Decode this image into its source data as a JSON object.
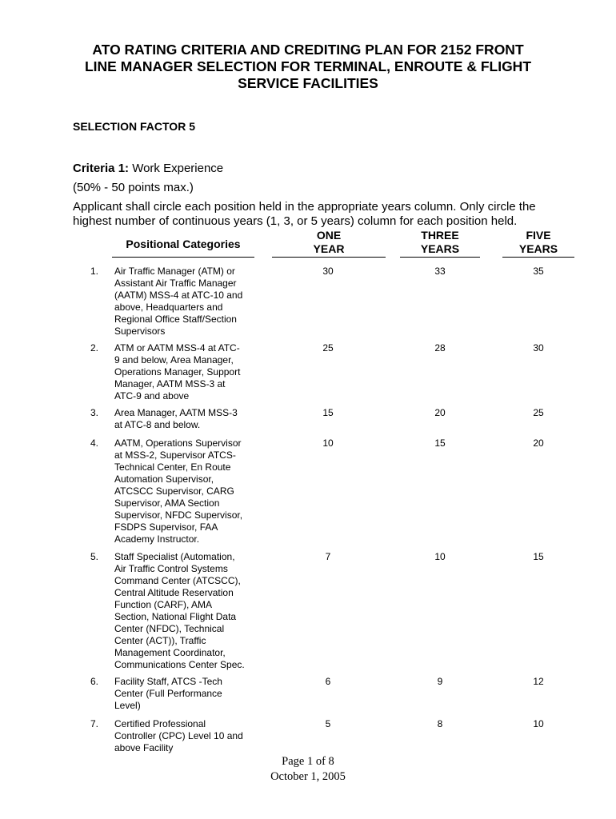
{
  "title": "ATO RATING CRITERIA AND CREDITING PLAN FOR 2152 FRONT\nLINE MANAGER SELECTION FOR TERMINAL, ENROUTE & FLIGHT\nSERVICE FACILITIES",
  "selection_factor": "SELECTION FACTOR 5",
  "criteria": {
    "label": "Criteria 1:",
    "name": "Work Experience",
    "points": "(50% - 50 points max.)"
  },
  "instructions": "Applicant shall circle each position held in the appropriate years column. Only circle the highest number of continuous years (1, 3, or 5 years) column for each position held.",
  "table": {
    "headers": {
      "category": "Positional Categories",
      "one": "ONE\nYEAR",
      "three": "THREE\nYEARS",
      "five": "FIVE\nYEARS"
    },
    "rows": [
      {
        "num": "1.",
        "desc": "Air Traffic Manager (ATM) or\nAssistant Air Traffic Manager\n(AATM) MSS-4 at ATC-10 and\nabove, Headquarters and\nRegional Office Staff/Section\nSupervisors",
        "one": "30",
        "three": "33",
        "five": "35"
      },
      {
        "num": "2.",
        "desc": "ATM or AATM MSS-4 at ATC-\n9 and below, Area Manager,\nOperations Manager, Support\nManager, AATM MSS-3 at\nATC-9 and above",
        "one": "25",
        "three": "28",
        "five": "30"
      },
      {
        "num": "3.",
        "desc": "Area Manager, AATM MSS-3\nat ATC-8 and below.",
        "one": "15",
        "three": "20",
        "five": "25"
      },
      {
        "num": "4.",
        "desc": "AATM, Operations Supervisor\nat MSS-2, Supervisor ATCS-\nTechnical Center, En Route\nAutomation Supervisor,\nATCSCC Supervisor, CARG\nSupervisor, AMA Section\nSupervisor, NFDC Supervisor,\nFSDPS Supervisor, FAA\nAcademy Instructor.",
        "one": "10",
        "three": "15",
        "five": "20"
      },
      {
        "num": "5.",
        "desc": "Staff Specialist (Automation,\nAir Traffic Control Systems\nCommand Center (ATCSCC),\nCentral Altitude Reservation\nFunction (CARF), AMA\nSection, National Flight Data\nCenter (NFDC), Technical\nCenter (ACT)), Traffic\nManagement Coordinator,\nCommunications Center Spec.",
        "one": "7",
        "three": "10",
        "five": "15"
      },
      {
        "num": "6.",
        "desc": "Facility Staff, ATCS -Tech\nCenter (Full Performance\nLevel)",
        "one": "6",
        "three": "9",
        "five": "12"
      },
      {
        "num": "7.",
        "desc": "Certified Professional\nController (CPC) Level 10 and\nabove Facility",
        "one": "5",
        "three": "8",
        "five": "10"
      }
    ]
  },
  "footer": {
    "page": "Page 1 of 8",
    "date": "October 1, 2005"
  }
}
